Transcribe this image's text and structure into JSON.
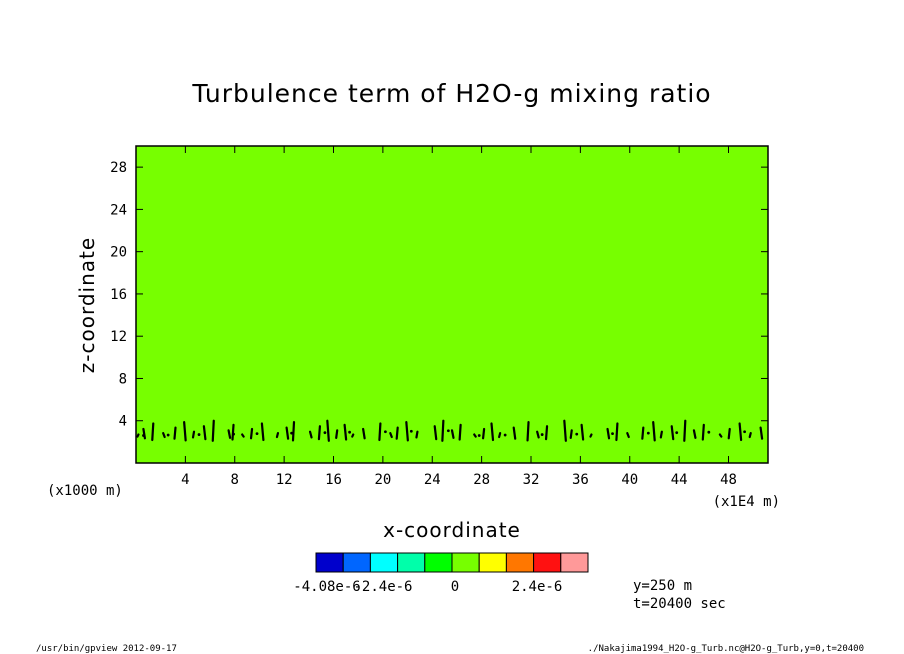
{
  "chart_data": {
    "type": "heatmap",
    "title": "Turbulence term of H2O-g mixing ratio",
    "xlabel": "x-coordinate",
    "ylabel": "z-coordinate",
    "x_scale_label": "(x1E4 m)",
    "y_scale_label": "(x1000 m)",
    "xlim": [
      0,
      51.2
    ],
    "ylim": [
      0,
      30
    ],
    "x_ticks": [
      4,
      8,
      12,
      16,
      20,
      24,
      28,
      32,
      36,
      40,
      44,
      48
    ],
    "y_ticks": [
      4,
      8,
      12,
      16,
      20,
      24,
      28
    ],
    "field_color": "#77ff00",
    "contour_band_z": [
      2,
      4
    ],
    "contour_x": [
      0.2,
      0.6,
      1.4,
      2.2,
      3.2,
      3.9,
      4.7,
      5.5,
      6.3,
      7.5,
      7.9,
      8.6,
      9.4,
      10.2,
      11.5,
      12.2,
      12.8,
      14.1,
      14.9,
      15.5,
      16.3,
      16.9,
      17.6,
      18.4,
      19.8,
      20.6,
      21.2,
      21.9,
      22.8,
      24.2,
      24.9,
      25.6,
      26.3,
      27.4,
      28.2,
      28.8,
      29.5,
      30.6,
      31.8,
      32.5,
      33.3,
      34.7,
      35.3,
      36.1,
      36.9,
      38.2,
      39.0,
      39.8,
      41.1,
      41.9,
      42.6,
      43.4,
      44.5,
      45.2,
      46.0,
      47.3,
      48.1,
      48.9,
      49.8,
      50.6
    ],
    "colorbar": {
      "colors": [
        "#0000cc",
        "#0066ff",
        "#00ffff",
        "#00ffaa",
        "#00ff00",
        "#77ff00",
        "#ffff00",
        "#ff7700",
        "#ff1111",
        "#ff9999"
      ],
      "labels": [
        "-4.08e-6",
        "-2.4e-6",
        "0",
        "2.4e-6"
      ]
    },
    "info": [
      "y=250 m",
      "t=20400 sec"
    ]
  },
  "footer": {
    "left": "/usr/bin/gpview  2012-09-17",
    "right": "./Nakajima1994_H2O-g_Turb.nc@H2O-g_Turb,y=0,t=20400"
  }
}
